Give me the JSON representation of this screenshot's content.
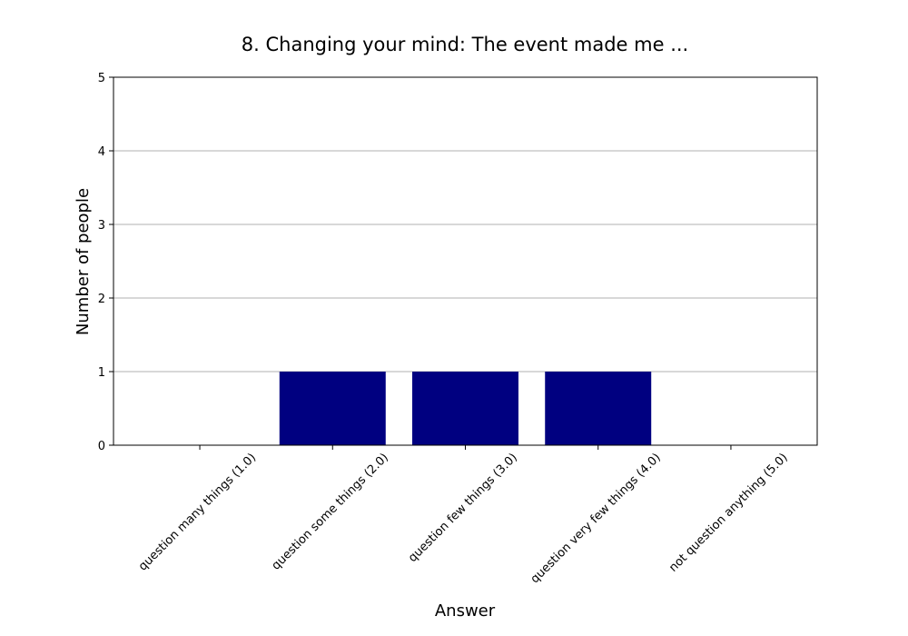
{
  "chart_data": {
    "type": "bar",
    "title": "8. Changing your mind: The event made me ...",
    "x_label": "Answer",
    "y_label": "Number of people",
    "categories": [
      "question many things (1.0)",
      "question some things (2.0)",
      "question few things (3.0)",
      "question very few things (4.0)",
      "not question anything (5.0)"
    ],
    "values": [
      0,
      1,
      1,
      1,
      0
    ],
    "color": "#000080",
    "ylim": [
      0,
      5
    ],
    "yticks": [
      0,
      1,
      2,
      3,
      4,
      5
    ],
    "grid": true
  }
}
